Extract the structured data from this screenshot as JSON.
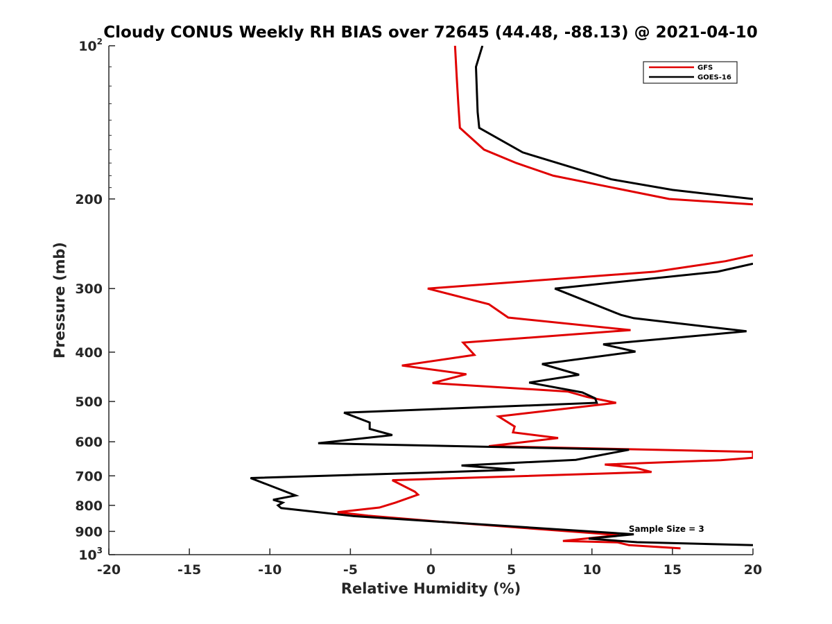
{
  "chart_data": {
    "type": "line",
    "title": "Cloudy CONUS Weekly RH BIAS over 72645 (44.48, -88.13) @ 2021-04-10",
    "xlabel": "Relative Humidity (%)",
    "ylabel": "Pressure (mb)",
    "xlim": [
      -20,
      20
    ],
    "ylim": [
      100,
      1000
    ],
    "yscale": "log",
    "y_reversed": true,
    "grid": false,
    "legend_position": "top-right",
    "x_ticks": [
      "-20",
      "-15",
      "-10",
      "-5",
      "0",
      "5",
      "10",
      "15",
      "20"
    ],
    "x_tick_values": [
      -20,
      -15,
      -10,
      -5,
      0,
      5,
      10,
      15,
      20
    ],
    "y_ticks": [
      {
        "value": 100,
        "base": "10",
        "exp": "2"
      },
      {
        "value": 200,
        "base": "200",
        "exp": ""
      },
      {
        "value": 300,
        "base": "300",
        "exp": ""
      },
      {
        "value": 400,
        "base": "400",
        "exp": ""
      },
      {
        "value": 500,
        "base": "500",
        "exp": ""
      },
      {
        "value": 600,
        "base": "600",
        "exp": ""
      },
      {
        "value": 700,
        "base": "700",
        "exp": ""
      },
      {
        "value": 800,
        "base": "800",
        "exp": ""
      },
      {
        "value": 900,
        "base": "900",
        "exp": ""
      },
      {
        "value": 1000,
        "base": "10",
        "exp": "3"
      }
    ],
    "annotation": "Sample Size = 3",
    "annotation_x": 12.5,
    "annotation_y": 902,
    "series": [
      {
        "name": "GFS",
        "color": "#e00000",
        "points": [
          [
            1.5,
            100
          ],
          [
            1.6,
            115
          ],
          [
            1.7,
            130
          ],
          [
            1.8,
            145
          ],
          [
            3.3,
            160
          ],
          [
            5.3,
            170
          ],
          [
            7.6,
            180
          ],
          [
            14.8,
            200
          ],
          [
            20,
            205
          ],
          [
            null,
            null
          ],
          [
            20,
            258
          ],
          [
            18.3,
            265
          ],
          [
            13.9,
            278
          ],
          [
            -0.2,
            300
          ],
          [
            3.6,
            322
          ],
          [
            4.8,
            342
          ],
          [
            12.4,
            362
          ],
          [
            2.0,
            383
          ],
          [
            2.7,
            405
          ],
          [
            -1.8,
            425
          ],
          [
            2.2,
            442
          ],
          [
            0.1,
            460
          ],
          [
            8.5,
            478
          ],
          [
            9.7,
            490
          ],
          [
            11.5,
            503
          ],
          [
            4.2,
            535
          ],
          [
            5.2,
            560
          ],
          [
            5.1,
            575
          ],
          [
            7.9,
            590
          ],
          [
            3.6,
            612
          ],
          [
            20,
            628
          ],
          [
            20,
            645
          ],
          [
            18.0,
            652
          ],
          [
            10.8,
            665
          ],
          [
            12.7,
            675
          ],
          [
            13.7,
            688
          ],
          [
            -2.4,
            714
          ],
          [
            -1.0,
            752
          ],
          [
            -0.8,
            762
          ],
          [
            -2.2,
            790
          ],
          [
            -3.2,
            808
          ],
          [
            -5.8,
            825
          ],
          [
            -3.9,
            838
          ],
          [
            0.3,
            860
          ],
          [
            4.5,
            880
          ],
          [
            11.7,
            915
          ],
          [
            8.2,
            940
          ],
          [
            11.6,
            946
          ],
          [
            12.3,
            958
          ],
          [
            15.5,
            972
          ]
        ]
      },
      {
        "name": "GOES-16",
        "color": "#000000",
        "points": [
          [
            3.2,
            100
          ],
          [
            2.8,
            110
          ],
          [
            2.9,
            135
          ],
          [
            3.0,
            145
          ],
          [
            5.7,
            162
          ],
          [
            11.2,
            183
          ],
          [
            15.0,
            192
          ],
          [
            20,
            200
          ],
          [
            null,
            null
          ],
          [
            20,
            268
          ],
          [
            17.8,
            278
          ],
          [
            7.7,
            300
          ],
          [
            11.8,
            338
          ],
          [
            12.6,
            343
          ],
          [
            19.6,
            364
          ],
          [
            10.7,
            386
          ],
          [
            12.7,
            399
          ],
          [
            6.9,
            422
          ],
          [
            9.2,
            443
          ],
          [
            6.1,
            459
          ],
          [
            9.4,
            480
          ],
          [
            10.2,
            493
          ],
          [
            10.3,
            503
          ],
          [
            -5.4,
            526
          ],
          [
            -3.8,
            550
          ],
          [
            -3.8,
            566
          ],
          [
            -2.4,
            582
          ],
          [
            -7.0,
            604
          ],
          [
            12.3,
            622
          ],
          [
            9.0,
            651
          ],
          [
            1.9,
            668
          ],
          [
            5.2,
            681
          ],
          [
            -0.2,
            690
          ],
          [
            -11.2,
            707
          ],
          [
            -8.4,
            765
          ],
          [
            -9.8,
            780
          ],
          [
            -9.2,
            790
          ],
          [
            -9.5,
            800
          ],
          [
            -9.3,
            810
          ],
          [
            -4.8,
            840
          ],
          [
            12.6,
            912
          ],
          [
            9.8,
            930
          ],
          [
            12.8,
            945
          ],
          [
            20,
            958
          ]
        ]
      }
    ]
  }
}
